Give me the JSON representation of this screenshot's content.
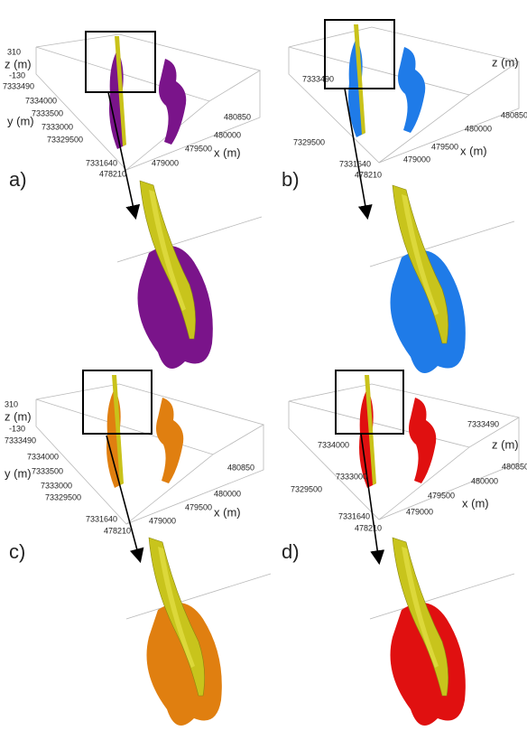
{
  "panels": [
    {
      "label": "a)",
      "tick_labels": [
        "310",
        "z (m)",
        "-130",
        "7333490",
        "7334000",
        "y (m)",
        "7333500",
        "7333000",
        "73329500",
        "7331640",
        "478210",
        "479000",
        "479500",
        "480000",
        "x (m)",
        "480850"
      ]
    },
    {
      "label": "b)",
      "tick_labels": [
        "7333490",
        "z (m)",
        "480850",
        "480000",
        "7329500",
        "479500",
        "479000",
        "x (m)",
        "7331640",
        "478210"
      ]
    },
    {
      "label": "c)",
      "tick_labels": [
        "310",
        "z (m)",
        "-130",
        "7333490",
        "7334000",
        "y (m)",
        "7333500",
        "7333000",
        "73329500",
        "7331640",
        "478210",
        "479000",
        "479500",
        "480000",
        "x (m)",
        "480850"
      ]
    },
    {
      "label": "d)",
      "tick_labels": [
        "7333490",
        "z (m)",
        "480850",
        "7334000",
        "7333000",
        "7329500",
        "479500",
        "479000",
        "480000",
        "x (m)",
        "7331640",
        "478210"
      ]
    }
  ]
}
